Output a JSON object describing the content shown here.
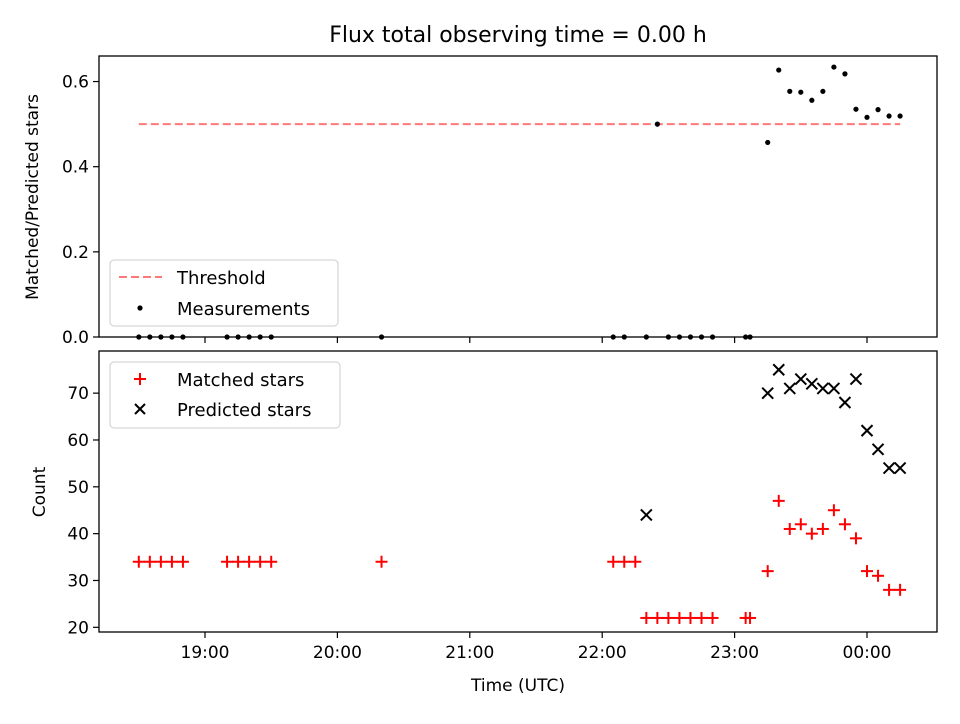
{
  "chart_data": {
    "title": "Flux total observing time = 0.00 h",
    "xlabel": "Time (UTC)",
    "x_ticks": [
      "19:00",
      "20:00",
      "21:00",
      "22:00",
      "23:00",
      "00:00"
    ],
    "panels": [
      {
        "type": "scatter",
        "ylabel": "Matched/Predicted stars",
        "ylim": [
          0,
          0.66
        ],
        "y_ticks": [
          "0.0",
          "0.2",
          "0.4",
          "0.6"
        ],
        "legend": [
          "Threshold",
          "Measurements"
        ],
        "legend_position": "lower-left",
        "threshold": {
          "name": "Threshold",
          "value": 0.5,
          "x_start": "18:30",
          "x_end": "00:15",
          "color": "#ff7777",
          "style": "dashed"
        },
        "series": [
          {
            "name": "Measurements",
            "color": "#000000",
            "marker": "dot",
            "x": [
              "18:30",
              "18:35",
              "18:40",
              "18:45",
              "18:50",
              "19:10",
              "19:15",
              "19:20",
              "19:25",
              "19:30",
              "20:20",
              "22:05",
              "22:10",
              "22:20",
              "22:25",
              "22:30",
              "22:35",
              "22:40",
              "22:45",
              "22:50",
              "23:05",
              "23:07",
              "23:15",
              "23:20",
              "23:25",
              "23:30",
              "23:35",
              "23:40",
              "23:45",
              "23:50",
              "23:55",
              "00:00",
              "00:05",
              "00:10",
              "00:15"
            ],
            "y": [
              0,
              0,
              0,
              0,
              0,
              0,
              0,
              0,
              0,
              0,
              0,
              0,
              0,
              0,
              0.5,
              0,
              0,
              0,
              0,
              0,
              0,
              0,
              0.457,
              0.627,
              0.577,
              0.575,
              0.556,
              0.577,
              0.634,
              0.618,
              0.535,
              0.516,
              0.534,
              0.519,
              0.519
            ]
          }
        ]
      },
      {
        "type": "scatter",
        "ylabel": "Count",
        "ylim": [
          19,
          79
        ],
        "y_ticks": [
          "20",
          "30",
          "40",
          "50",
          "60",
          "70"
        ],
        "legend": [
          "Matched stars",
          "Predicted stars"
        ],
        "legend_position": "upper-left",
        "series": [
          {
            "name": "Matched stars",
            "color": "#ff0000",
            "marker": "plus",
            "x": [
              "18:30",
              "18:35",
              "18:40",
              "18:45",
              "18:50",
              "19:10",
              "19:15",
              "19:20",
              "19:25",
              "19:30",
              "20:20",
              "22:05",
              "22:10",
              "22:15",
              "22:20",
              "22:25",
              "22:30",
              "22:35",
              "22:40",
              "22:45",
              "22:50",
              "23:05",
              "23:07",
              "23:15",
              "23:20",
              "23:25",
              "23:30",
              "23:35",
              "23:40",
              "23:45",
              "23:50",
              "23:55",
              "00:00",
              "00:05",
              "00:10",
              "00:15"
            ],
            "y": [
              34,
              34,
              34,
              34,
              34,
              34,
              34,
              34,
              34,
              34,
              34,
              34,
              34,
              34,
              22,
              22,
              22,
              22,
              22,
              22,
              22,
              22,
              22,
              32,
              47,
              41,
              42,
              40,
              41,
              45,
              42,
              39,
              32,
              31,
              28,
              28
            ]
          },
          {
            "name": "Predicted stars",
            "color": "#000000",
            "marker": "x",
            "x": [
              "22:20",
              "23:15",
              "23:20",
              "23:25",
              "23:30",
              "23:35",
              "23:40",
              "23:45",
              "23:50",
              "23:55",
              "00:00",
              "00:05",
              "00:10",
              "00:15"
            ],
            "y": [
              44,
              70,
              75,
              71,
              73,
              72,
              71,
              71,
              68,
              73,
              62,
              58,
              54,
              54
            ]
          }
        ]
      }
    ]
  }
}
